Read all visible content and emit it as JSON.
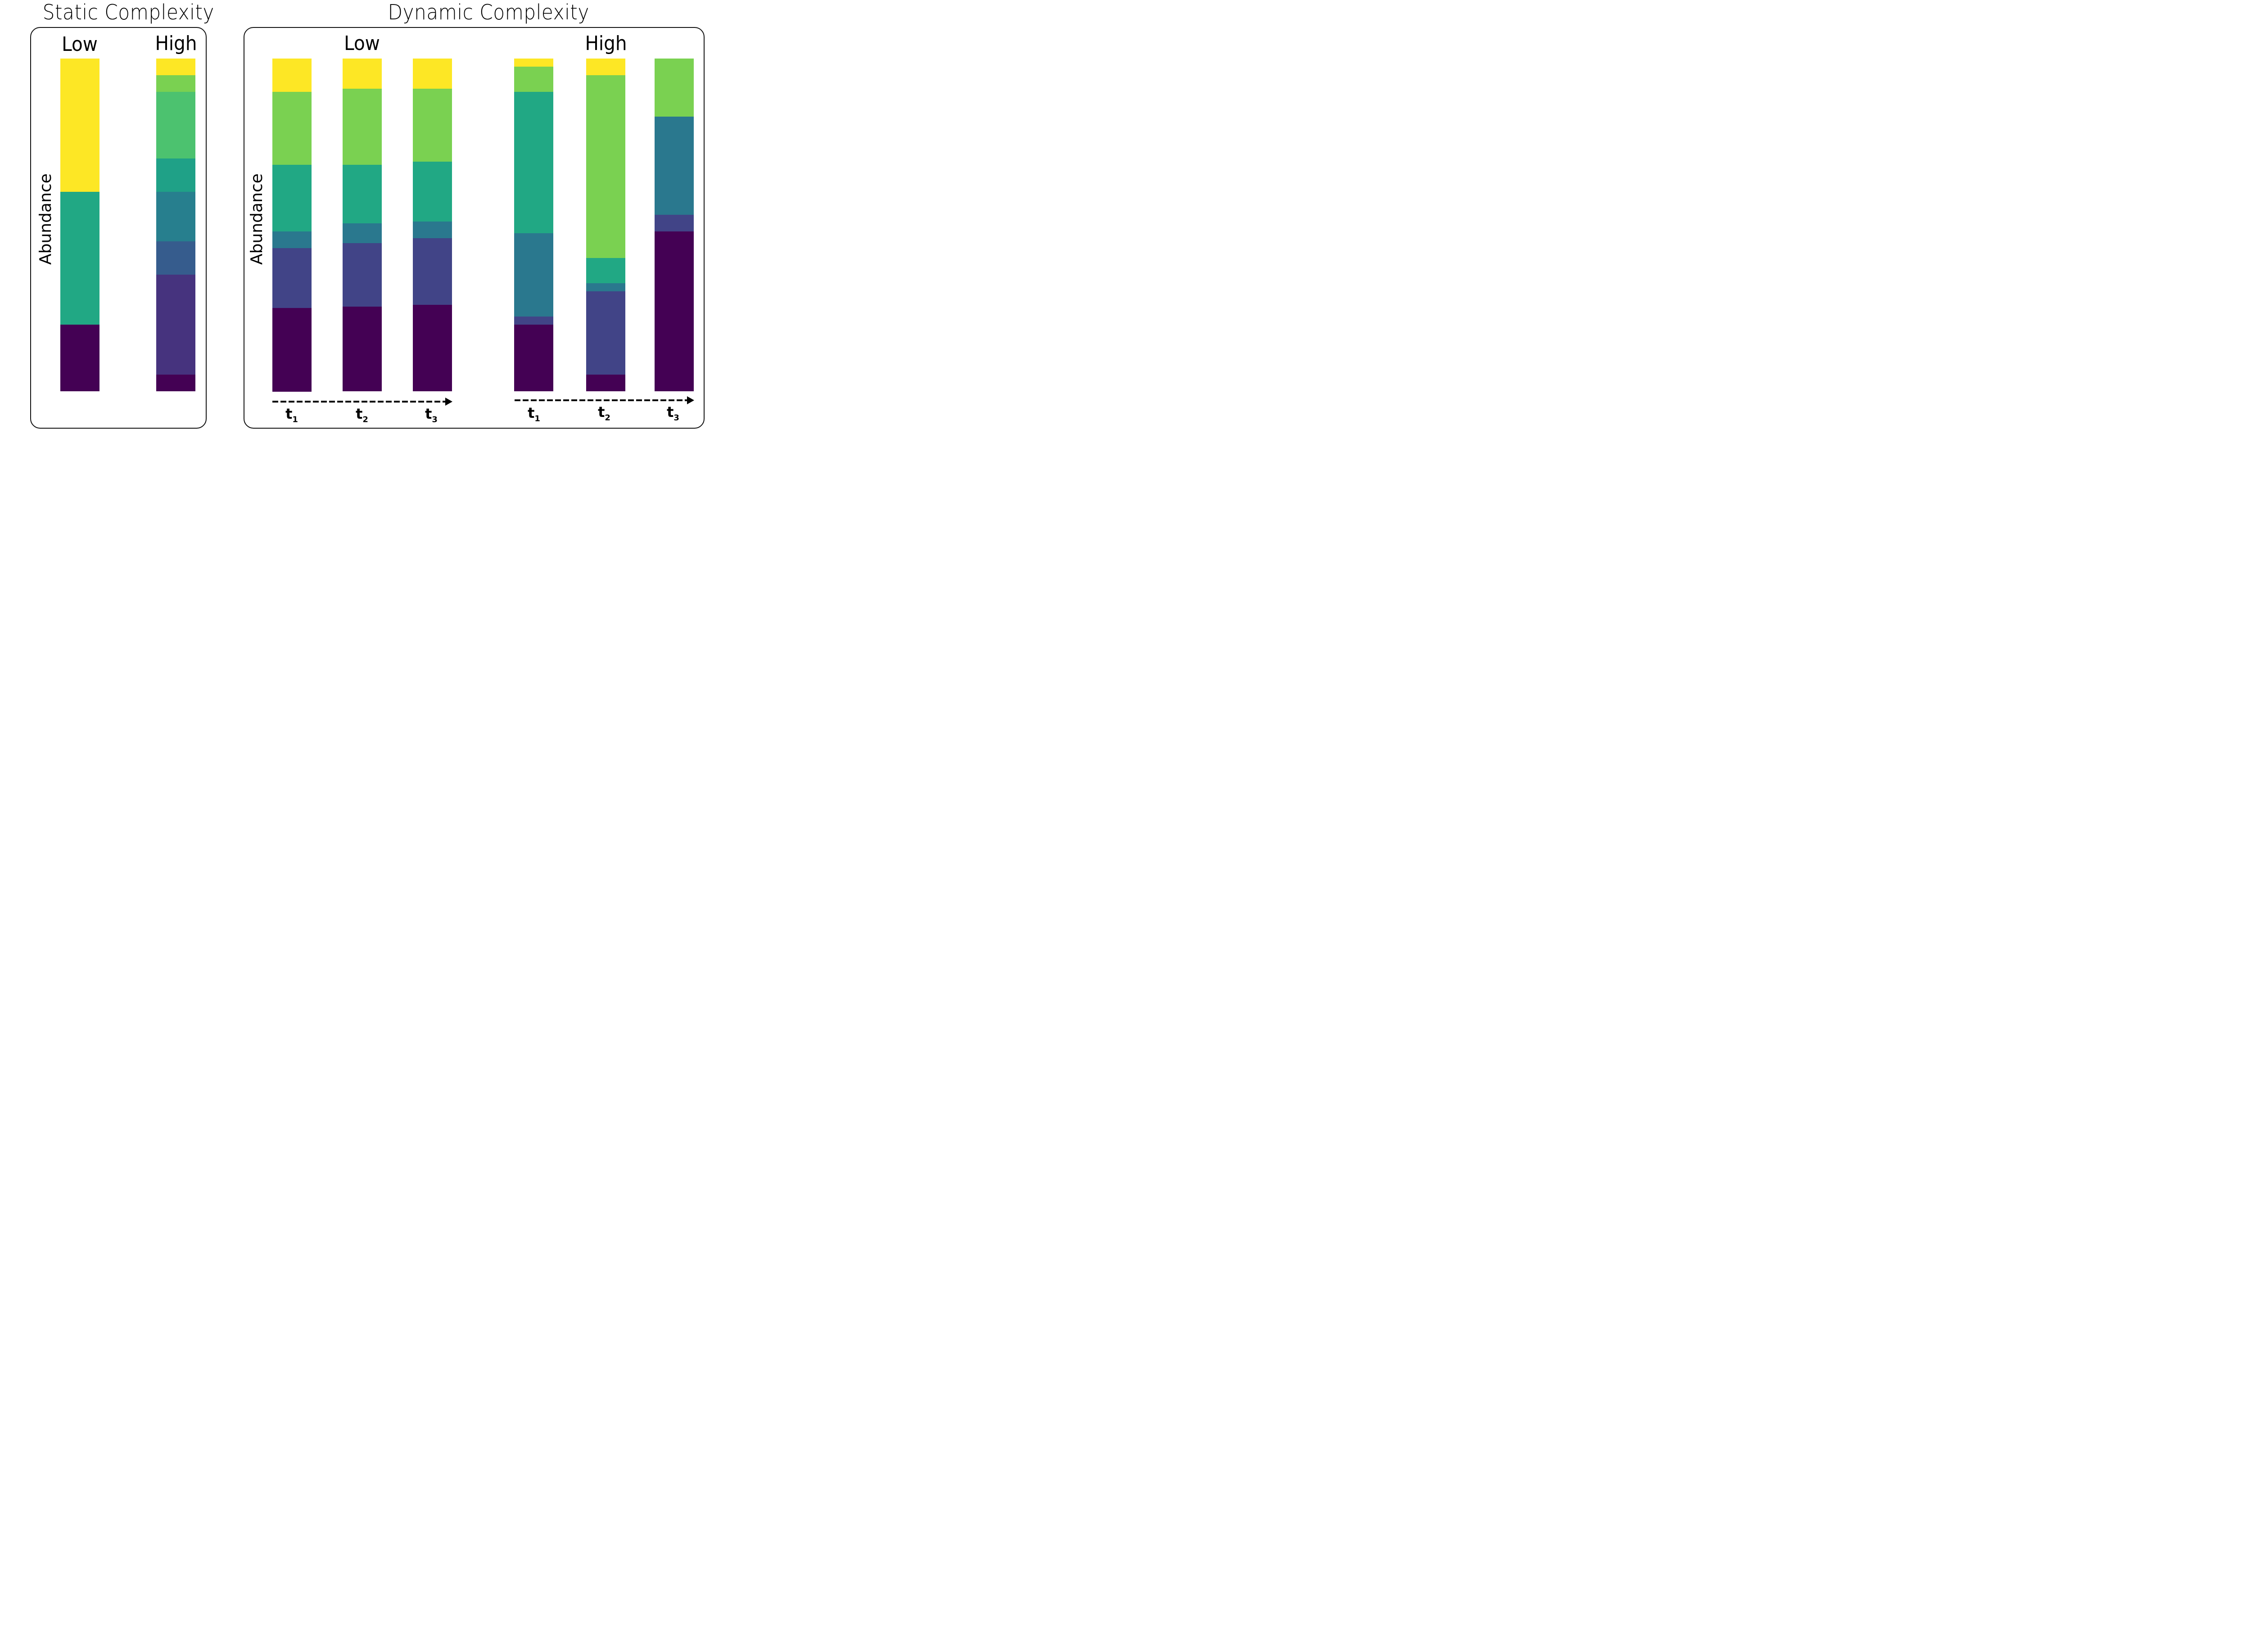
{
  "titles": {
    "static": "Static Complexity",
    "dynamic": "Dynamic Complexity"
  },
  "ylabel": "Abundance",
  "group_labels": {
    "static_low": "Low",
    "static_high": "High",
    "dynamic_low": "Low",
    "dynamic_high": "High"
  },
  "time_labels": [
    {
      "base": "t",
      "sub": "1"
    },
    {
      "base": "t",
      "sub": "2"
    },
    {
      "base": "t",
      "sub": "3"
    }
  ],
  "palette": {
    "yellow": "#fde725",
    "light_green": "#7ad151",
    "green": "#4cc26f",
    "teal": "#21a884",
    "teal2": "#1fa187",
    "blue_teal": "#277f8e",
    "dark_teal": "#2a788e",
    "blue": "#365c8d",
    "indigo": "#414487",
    "violet": "#46337e",
    "purple": "#440154"
  },
  "chart_data": [
    {
      "type": "bar",
      "stacked": true,
      "normalized": true,
      "title": "Static Complexity",
      "ylabel": "Abundance",
      "categories": [
        "Low",
        "High"
      ],
      "bars": [
        {
          "label": "Low",
          "segments_top_to_bottom": [
            {
              "color": "#fde725",
              "value": 0.4
            },
            {
              "color": "#21a884",
              "value": 0.4
            },
            {
              "color": "#440154",
              "value": 0.2
            }
          ]
        },
        {
          "label": "High",
          "segments_top_to_bottom": [
            {
              "color": "#fde725",
              "value": 0.05
            },
            {
              "color": "#7ad151",
              "value": 0.05
            },
            {
              "color": "#4cc26f",
              "value": 0.2
            },
            {
              "color": "#1fa187",
              "value": 0.1
            },
            {
              "color": "#277f8e",
              "value": 0.15
            },
            {
              "color": "#365c8d",
              "value": 0.1
            },
            {
              "color": "#46337e",
              "value": 0.3
            },
            {
              "color": "#440154",
              "value": 0.05
            }
          ]
        }
      ]
    },
    {
      "type": "bar",
      "stacked": true,
      "normalized": true,
      "title": "Dynamic Complexity",
      "ylabel": "Abundance",
      "groups": [
        {
          "label": "Low",
          "bars": [
            {
              "label": "t1",
              "segments_top_to_bottom": [
                {
                  "color": "#fde725",
                  "value": 0.1
                },
                {
                  "color": "#7ad151",
                  "value": 0.22
                },
                {
                  "color": "#21a884",
                  "value": 0.2
                },
                {
                  "color": "#2a788e",
                  "value": 0.05
                },
                {
                  "color": "#414487",
                  "value": 0.18
                },
                {
                  "color": "#440154",
                  "value": 0.25
                }
              ]
            },
            {
              "label": "t2",
              "segments_top_to_bottom": [
                {
                  "color": "#fde725",
                  "value": 0.09
                },
                {
                  "color": "#7ad151",
                  "value": 0.23
                },
                {
                  "color": "#21a884",
                  "value": 0.175
                },
                {
                  "color": "#2a788e",
                  "value": 0.06
                },
                {
                  "color": "#414487",
                  "value": 0.19
                },
                {
                  "color": "#440154",
                  "value": 0.255
                }
              ]
            },
            {
              "label": "t3",
              "segments_top_to_bottom": [
                {
                  "color": "#fde725",
                  "value": 0.09
                },
                {
                  "color": "#7ad151",
                  "value": 0.22
                },
                {
                  "color": "#21a884",
                  "value": 0.18
                },
                {
                  "color": "#2a788e",
                  "value": 0.05
                },
                {
                  "color": "#414487",
                  "value": 0.2
                },
                {
                  "color": "#440154",
                  "value": 0.26
                }
              ]
            }
          ]
        },
        {
          "label": "High",
          "bars": [
            {
              "label": "t1",
              "segments_top_to_bottom": [
                {
                  "color": "#fde725",
                  "value": 0.025
                },
                {
                  "color": "#7ad151",
                  "value": 0.075
                },
                {
                  "color": "#21a884",
                  "value": 0.425
                },
                {
                  "color": "#2a788e",
                  "value": 0.25
                },
                {
                  "color": "#414487",
                  "value": 0.025
                },
                {
                  "color": "#440154",
                  "value": 0.2
                }
              ]
            },
            {
              "label": "t2",
              "segments_top_to_bottom": [
                {
                  "color": "#fde725",
                  "value": 0.05
                },
                {
                  "color": "#7ad151",
                  "value": 0.55
                },
                {
                  "color": "#21a884",
                  "value": 0.075
                },
                {
                  "color": "#2a788e",
                  "value": 0.025
                },
                {
                  "color": "#414487",
                  "value": 0.25
                },
                {
                  "color": "#440154",
                  "value": 0.05
                }
              ]
            },
            {
              "label": "t3",
              "segments_top_to_bottom": [
                {
                  "color": "#7ad151",
                  "value": 0.175
                },
                {
                  "color": "#2a788e",
                  "value": 0.295
                },
                {
                  "color": "#414487",
                  "value": 0.05
                },
                {
                  "color": "#440154",
                  "value": 0.48
                }
              ]
            }
          ]
        }
      ]
    }
  ]
}
